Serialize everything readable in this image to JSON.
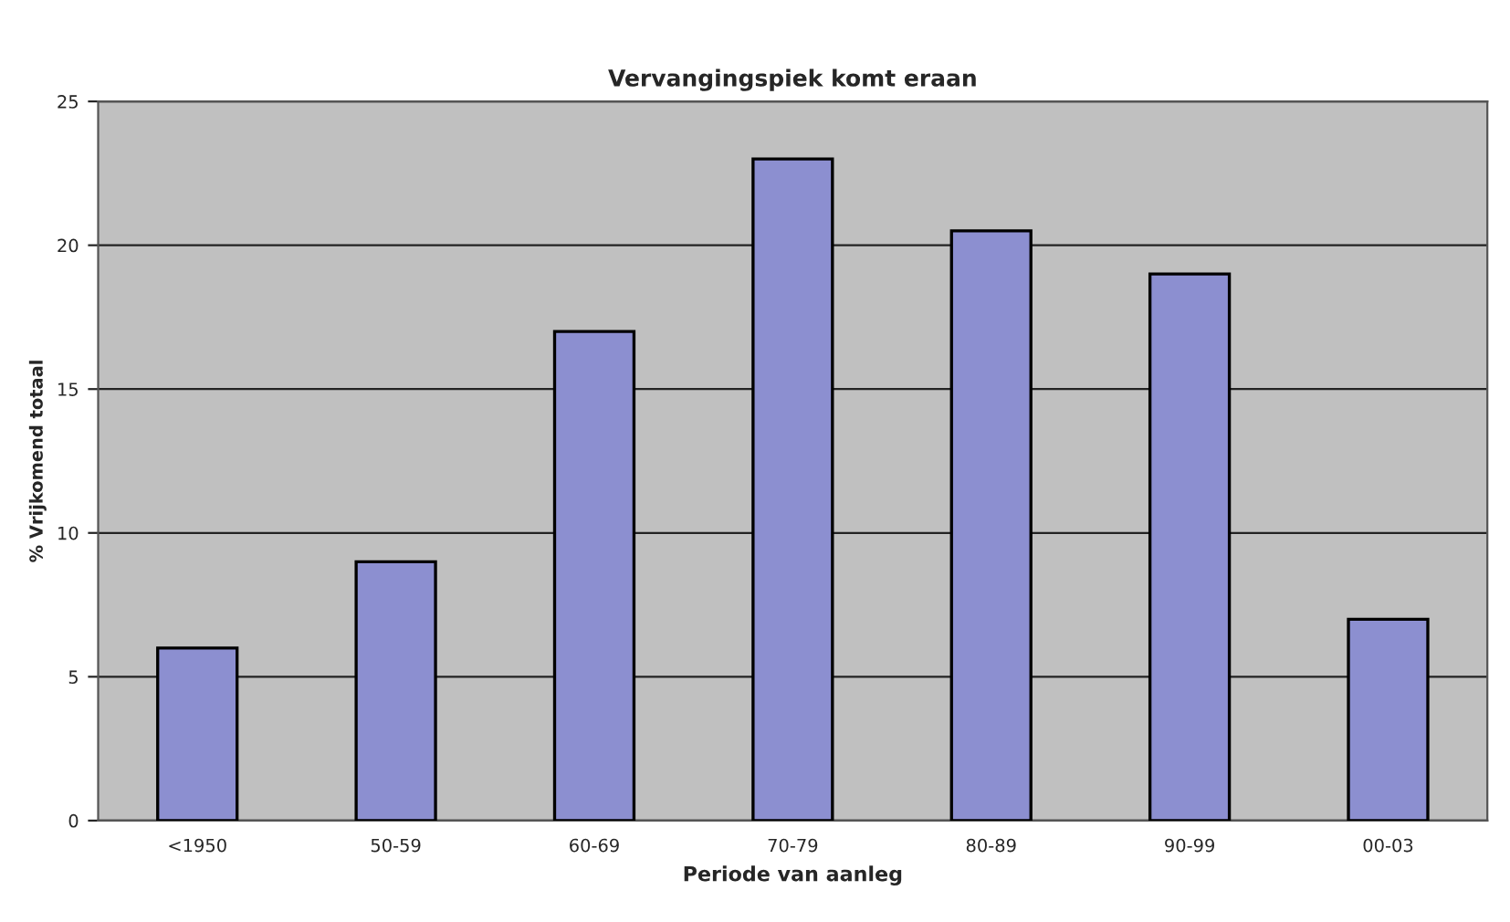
{
  "chart_data": {
    "type": "bar",
    "title": "Vervangingspiek komt eraan",
    "xlabel": "Periode van aanleg",
    "ylabel": "% Vrijkomend totaal",
    "categories": [
      "<1950",
      "50-59",
      "60-69",
      "70-79",
      "80-89",
      "90-99",
      "00-03"
    ],
    "values": [
      6,
      9,
      17,
      23,
      20.5,
      19,
      7
    ],
    "color": "#8c8fd0",
    "ylim": [
      0,
      25
    ],
    "yticks": [
      0,
      5,
      10,
      15,
      20,
      25
    ],
    "grid": "y"
  }
}
